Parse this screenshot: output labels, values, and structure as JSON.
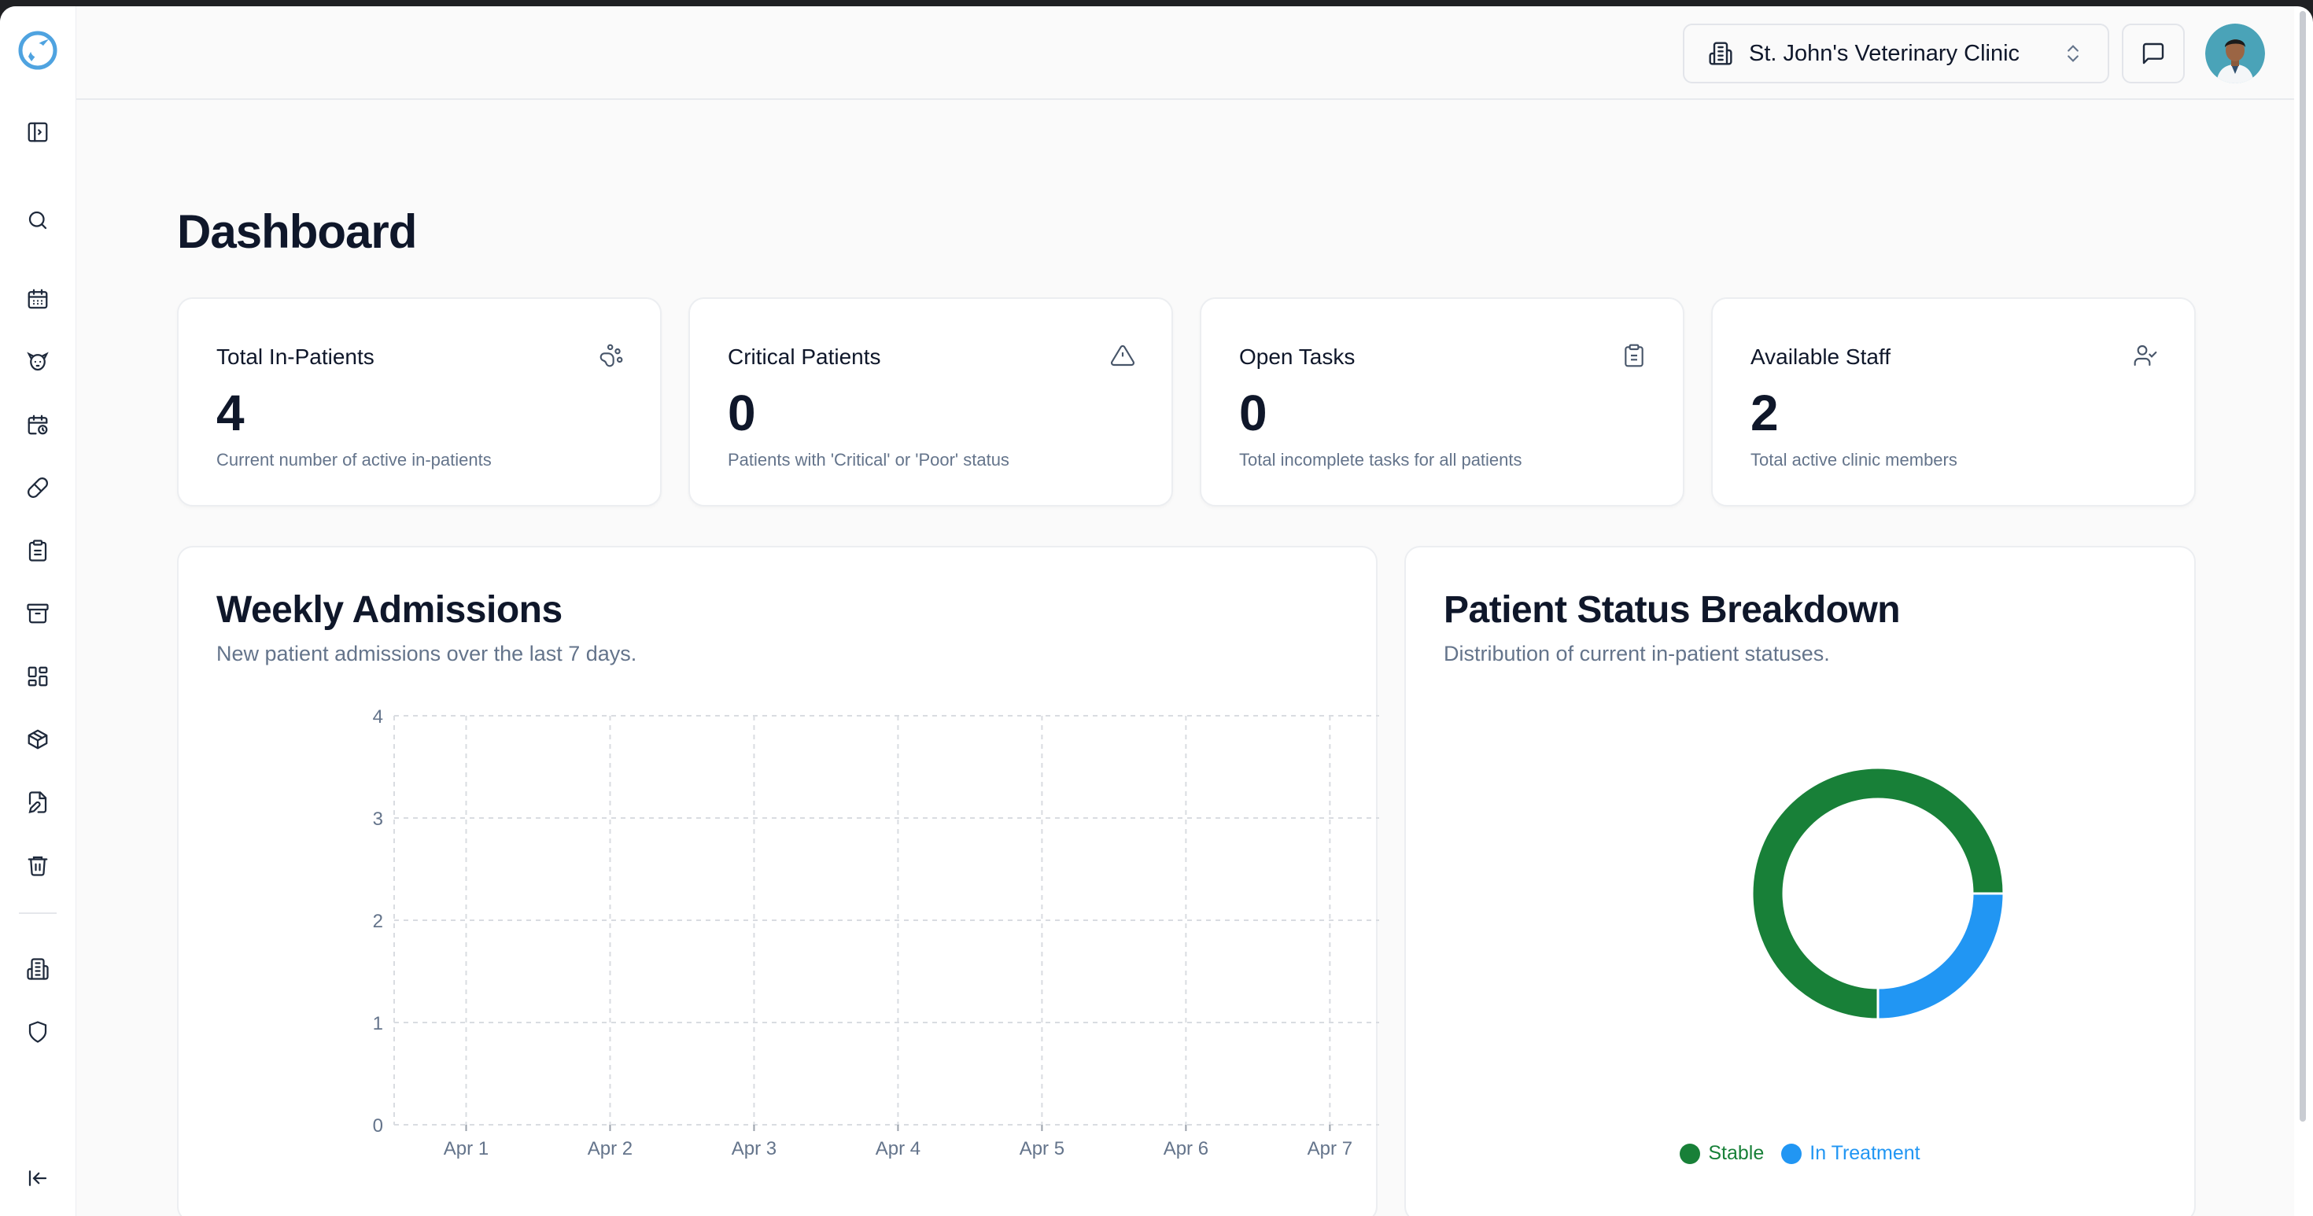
{
  "clinic_selector": {
    "name": "St. John's Veterinary Clinic"
  },
  "page": {
    "title": "Dashboard"
  },
  "sidebar": {
    "items": [
      {
        "name": "toggle-sidebar",
        "icon": "sidebar-toggle-icon"
      },
      {
        "name": "search",
        "icon": "search-icon"
      },
      {
        "name": "calendar",
        "icon": "calendar-icon"
      },
      {
        "name": "patients",
        "icon": "paw-icon"
      },
      {
        "name": "schedule",
        "icon": "calendar-clock-icon"
      },
      {
        "name": "medications",
        "icon": "pill-icon"
      },
      {
        "name": "tasks",
        "icon": "clipboard-icon"
      },
      {
        "name": "archive",
        "icon": "archive-icon"
      },
      {
        "name": "layout",
        "icon": "dashboard-grid-icon"
      },
      {
        "name": "inventory",
        "icon": "package-icon"
      },
      {
        "name": "documents",
        "icon": "file-edit-icon"
      },
      {
        "name": "trash",
        "icon": "trash-icon"
      },
      {
        "name": "clinic",
        "icon": "building-icon"
      },
      {
        "name": "security",
        "icon": "shield-icon"
      },
      {
        "name": "collapse",
        "icon": "collapse-icon"
      }
    ]
  },
  "stats": [
    {
      "title": "Total In-Patients",
      "value": "4",
      "desc": "Current number of active in-patients",
      "icon": "paw-icon"
    },
    {
      "title": "Critical Patients",
      "value": "0",
      "desc": "Patients with 'Critical' or 'Poor' status",
      "icon": "alert-triangle-icon"
    },
    {
      "title": "Open Tasks",
      "value": "0",
      "desc": "Total incomplete tasks for all patients",
      "icon": "clipboard-icon"
    },
    {
      "title": "Available Staff",
      "value": "2",
      "desc": "Total active clinic members",
      "icon": "user-check-icon"
    }
  ],
  "admissions": {
    "title": "Weekly Admissions",
    "subtitle": "New patient admissions over the last 7 days."
  },
  "breakdown": {
    "title": "Patient Status Breakdown",
    "subtitle": "Distribution of current in-patient statuses."
  },
  "colors": {
    "stable": "#188038",
    "in_treatment": "#2196f3",
    "text": "#0f172a",
    "muted": "#64748b"
  },
  "chart_data": [
    {
      "type": "line",
      "x": [
        "Apr 1",
        "Apr 2",
        "Apr 3",
        "Apr 4",
        "Apr 5",
        "Apr 6",
        "Apr 7"
      ],
      "series": [
        {
          "values": [
            0,
            0,
            0,
            0,
            0,
            0,
            0
          ]
        }
      ],
      "y_ticks": [
        "0",
        "1",
        "2",
        "3",
        "4"
      ],
      "ylim": [
        0,
        4
      ],
      "grid": true
    },
    {
      "type": "pie",
      "donut": true,
      "categories": [
        "Stable",
        "In Treatment"
      ],
      "values": [
        3,
        1
      ],
      "colors": [
        "#188038",
        "#2196f3"
      ],
      "legend": "bottom"
    }
  ]
}
